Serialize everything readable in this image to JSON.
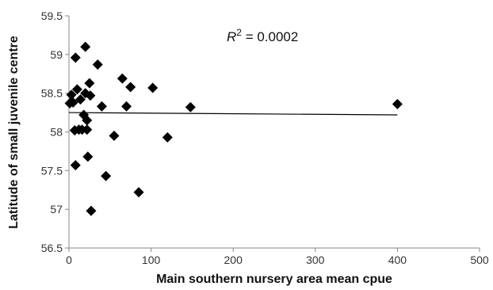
{
  "chart_data": {
    "type": "scatter",
    "xlabel": "Main southern nursery area mean cpue",
    "ylabel": "Latitude of small juvenile centre",
    "xlim": [
      0,
      500
    ],
    "ylim": [
      56.5,
      59.5
    ],
    "xticks": [
      0,
      100,
      200,
      300,
      400,
      500
    ],
    "yticks": [
      56.5,
      57,
      57.5,
      58,
      58.5,
      59,
      59.5
    ],
    "xtick_labels": [
      "0",
      "100",
      "200",
      "300",
      "400",
      "500"
    ],
    "ytick_labels": [
      "56.5",
      "57",
      "57.5",
      "58",
      "58.5",
      "59",
      "59.5"
    ],
    "annotation": {
      "prefix": "R",
      "superscript": "2",
      "text": " = 0.0002"
    },
    "grid": false,
    "marker": "diamond",
    "marker_color": "#000000",
    "trendline": {
      "x": [
        0,
        400
      ],
      "y": [
        58.25,
        58.22
      ]
    },
    "points": [
      {
        "x": 1,
        "y": 58.37
      },
      {
        "x": 3,
        "y": 58.48
      },
      {
        "x": 5,
        "y": 58.38
      },
      {
        "x": 7,
        "y": 58.02
      },
      {
        "x": 8,
        "y": 57.57
      },
      {
        "x": 8,
        "y": 58.96
      },
      {
        "x": 10,
        "y": 58.55
      },
      {
        "x": 12,
        "y": 58.03
      },
      {
        "x": 14,
        "y": 58.42
      },
      {
        "x": 16,
        "y": 58.03
      },
      {
        "x": 18,
        "y": 58.22
      },
      {
        "x": 20,
        "y": 59.1
      },
      {
        "x": 20,
        "y": 58.5
      },
      {
        "x": 22,
        "y": 58.03
      },
      {
        "x": 22,
        "y": 58.15
      },
      {
        "x": 23,
        "y": 57.68
      },
      {
        "x": 25,
        "y": 58.63
      },
      {
        "x": 26,
        "y": 58.47
      },
      {
        "x": 27,
        "y": 56.98
      },
      {
        "x": 35,
        "y": 58.87
      },
      {
        "x": 40,
        "y": 58.33
      },
      {
        "x": 45,
        "y": 57.43
      },
      {
        "x": 55,
        "y": 57.95
      },
      {
        "x": 65,
        "y": 58.69
      },
      {
        "x": 70,
        "y": 58.33
      },
      {
        "x": 75,
        "y": 58.58
      },
      {
        "x": 85,
        "y": 57.22
      },
      {
        "x": 102,
        "y": 58.57
      },
      {
        "x": 120,
        "y": 57.93
      },
      {
        "x": 148,
        "y": 58.32
      },
      {
        "x": 400,
        "y": 58.36
      }
    ]
  }
}
